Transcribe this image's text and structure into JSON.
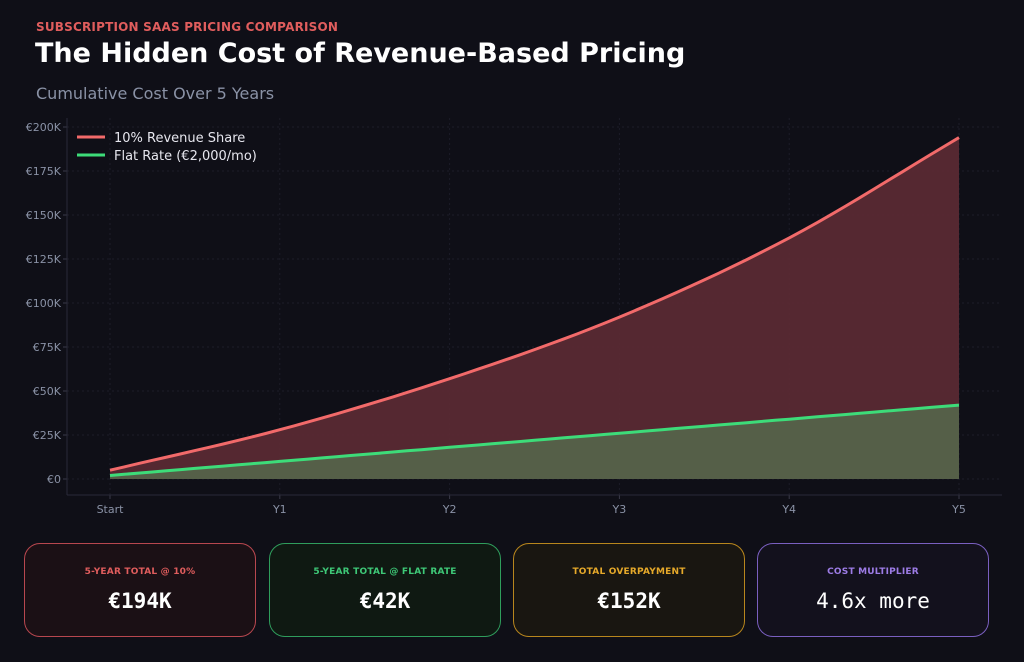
{
  "header": {
    "eyebrow": "SUBSCRIPTION SAAS PRICING COMPARISON",
    "title": "The Hidden Cost of Revenue-Based Pricing",
    "subtitle": "Cumulative Cost Over 5 Years"
  },
  "chart_data": {
    "type": "area",
    "title": "Cumulative Cost Over 5 Years",
    "xlabel": "",
    "ylabel": "",
    "categories": [
      "Start",
      "Y1",
      "Y2",
      "Y3",
      "Y4",
      "Y5"
    ],
    "series": [
      {
        "name": "10% Revenue Share",
        "color": "#f26a6a",
        "fill": "#5a2a33",
        "values": [
          5000,
          28000,
          57000,
          92000,
          137000,
          194000
        ]
      },
      {
        "name": "Flat Rate (€2,000/mo)",
        "color": "#3ddc79",
        "fill": "#55624a",
        "values": [
          2000,
          10000,
          18000,
          26000,
          34000,
          42000
        ]
      }
    ],
    "ylim": [
      -10000,
      200000
    ],
    "yticks": [
      0,
      25000,
      50000,
      75000,
      100000,
      125000,
      150000,
      175000,
      200000
    ],
    "ytick_labels": [
      "€0",
      "€25K",
      "€50K",
      "€75K",
      "€100K",
      "€125K",
      "€150K",
      "€175K",
      "€200K"
    ],
    "grid": true,
    "legend_position": "top-left"
  },
  "cards": [
    {
      "label": "5-YEAR TOTAL @ 10%",
      "value": "€194K",
      "accent": "#e05d5d",
      "border": "#b8474f",
      "bg": "#1b1015"
    },
    {
      "label": "5-YEAR TOTAL @ FLAT RATE",
      "value": "€42K",
      "accent": "#3ec877",
      "border": "#2f9d5c",
      "bg": "#0f1912"
    },
    {
      "label": "TOTAL OVERPAYMENT",
      "value": "€152K",
      "accent": "#e6a92a",
      "border": "#b8861d",
      "bg": "#191611"
    },
    {
      "label": "COST MULTIPLIER",
      "value": "4.6x more",
      "accent": "#9d7ce6",
      "border": "#7a5fc0",
      "bg": "#13111d"
    }
  ]
}
